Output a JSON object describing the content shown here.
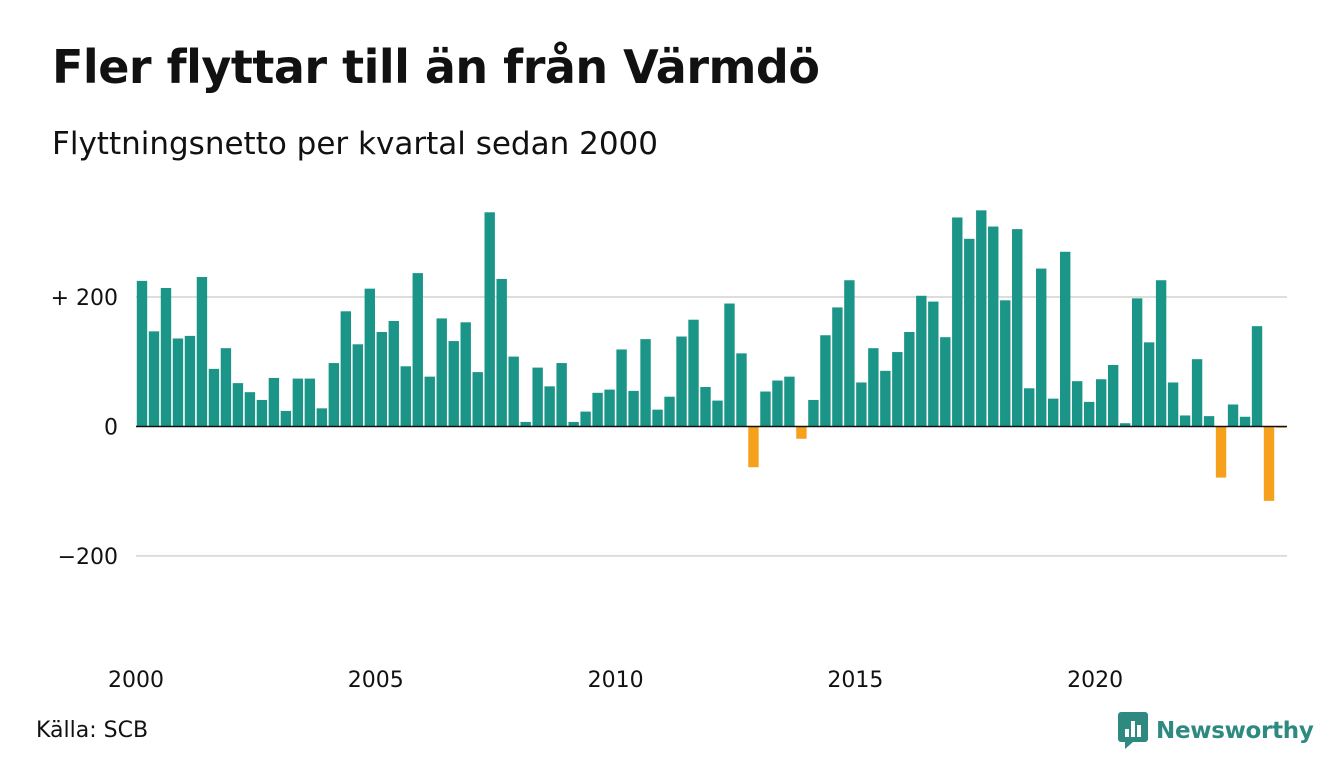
{
  "title": "Fler flyttar till än från Värmdö",
  "subtitle": "Flyttningsnetto per kvartal sedan 2000",
  "source": "Källa: SCB",
  "brand": {
    "name": "Newsworthy",
    "icon": "newsworthy-logo-icon"
  },
  "colors": {
    "positive": "#1a9588",
    "negative": "#f5a11c",
    "grid": "#dddddd",
    "axis": "#111111",
    "brand": "#2e8a80"
  },
  "chart_data": {
    "type": "bar",
    "ylim": [
      -330,
      350
    ],
    "yticks": [
      {
        "value": 200,
        "label": "+ 200"
      },
      {
        "value": 0,
        "label": "0"
      },
      {
        "value": -200,
        "label": "−200"
      }
    ],
    "xticks": [
      {
        "value": 2000,
        "label": "2000"
      },
      {
        "value": 2005,
        "label": "2005"
      },
      {
        "value": 2010,
        "label": "2010"
      },
      {
        "value": 2015,
        "label": "2015"
      },
      {
        "value": 2020,
        "label": "2020"
      }
    ],
    "grid": true,
    "x_start": 2000,
    "period": "quarter",
    "values": [
      225,
      147,
      214,
      136,
      140,
      231,
      89,
      121,
      67,
      53,
      41,
      75,
      24,
      74,
      74,
      28,
      98,
      178,
      127,
      213,
      146,
      163,
      93,
      237,
      77,
      167,
      132,
      161,
      84,
      331,
      228,
      108,
      7,
      91,
      62,
      98,
      7,
      23,
      52,
      57,
      119,
      55,
      135,
      26,
      46,
      139,
      165,
      61,
      40,
      190,
      113,
      -63,
      54,
      71,
      77,
      -19,
      41,
      141,
      184,
      226,
      68,
      121,
      86,
      115,
      146,
      202,
      193,
      138,
      323,
      290,
      334,
      309,
      195,
      305,
      59,
      244,
      43,
      270,
      70,
      38,
      73,
      95,
      5,
      198,
      130,
      226,
      68,
      17,
      104,
      16,
      -79,
      34,
      15,
      155,
      -115,
      -2
    ]
  }
}
